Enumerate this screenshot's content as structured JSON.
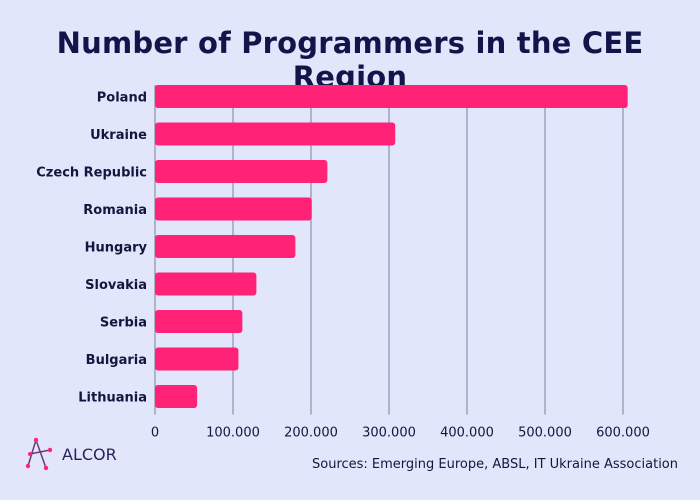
{
  "chart_data": {
    "type": "bar",
    "orientation": "horizontal",
    "title": "Number of Programmers in the CEE Region",
    "categories": [
      "Poland",
      "Ukraine",
      "Czech Republic",
      "Romania",
      "Hungary",
      "Slovakia",
      "Serbia",
      "Bulgaria",
      "Lithuania"
    ],
    "values": [
      606000,
      308000,
      221000,
      201000,
      180000,
      130000,
      112000,
      107000,
      54000
    ],
    "xlim": [
      0,
      600000
    ],
    "xticks": [
      0,
      100000,
      200000,
      300000,
      400000,
      500000,
      600000
    ],
    "xtick_labels": [
      "0",
      "100.000",
      "200.000",
      "300.000",
      "400.000",
      "500.000",
      "600.000"
    ],
    "grid": "vertical",
    "bar_color": "#ff2277",
    "grid_color": "#7c7f9c"
  },
  "source": "Sources: Emerging Europe, ABSL, IT Ukraine Association",
  "logo": {
    "text": "ALCOR"
  },
  "colors": {
    "background": "#e2e6fa",
    "title": "#12154a"
  }
}
